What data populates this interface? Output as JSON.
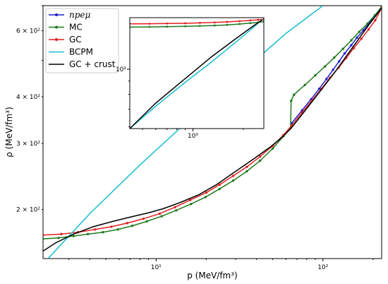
{
  "chart_data": [
    {
      "type": "line",
      "xlabel": "p (MeV/fm³)",
      "ylabel": "ρ (MeV/fm³)",
      "xscale": "log",
      "yscale": "log",
      "xlim": [
        2.1,
        225
      ],
      "ylim": [
        148,
        700
      ],
      "xticks": [
        {
          "value": 10,
          "label": "10¹"
        },
        {
          "value": 100,
          "label": "10²"
        }
      ],
      "yticks": [
        {
          "value": 200,
          "label": "2 × 10²"
        },
        {
          "value": 300,
          "label": "3 × 10²"
        },
        {
          "value": 400,
          "label": "4 × 10²"
        },
        {
          "value": 600,
          "label": "6 × 10²"
        }
      ],
      "legend_position": "upper-left",
      "series": [
        {
          "name": "npeμ",
          "color": "#1f1fcc",
          "marker": true,
          "points": [
            [
              65,
              340
            ],
            [
              75,
              368
            ],
            [
              85,
              394
            ],
            [
              95,
              420
            ],
            [
              105,
              446
            ],
            [
              115,
              472
            ],
            [
              125,
              497
            ],
            [
              135,
              522
            ],
            [
              148,
              549
            ],
            [
              160,
              575
            ],
            [
              175,
              602
            ],
            [
              190,
              630
            ],
            [
              205,
              658
            ],
            [
              225,
              694
            ]
          ]
        },
        {
          "name": "MC",
          "color": "#1f7a1f",
          "marker": true,
          "points": [
            [
              2.1,
              167
            ],
            [
              2.6,
              168
            ],
            [
              3.2,
              170
            ],
            [
              3.9,
              172
            ],
            [
              4.8,
              174
            ],
            [
              5.9,
              177
            ],
            [
              7.2,
              181
            ],
            [
              8.8,
              186
            ],
            [
              10.8,
              192
            ],
            [
              13.2,
              199
            ],
            [
              16.2,
              207
            ],
            [
              19.8,
              216
            ],
            [
              24,
              227
            ],
            [
              29,
              239
            ],
            [
              35,
              253
            ],
            [
              42,
              270
            ],
            [
              50,
              291
            ],
            [
              58,
              314
            ],
            [
              64,
              330
            ],
            [
              64.5,
              390
            ],
            [
              67,
              405
            ],
            [
              78,
              430
            ],
            [
              90,
              456
            ],
            [
              103,
              482
            ],
            [
              117,
              509
            ],
            [
              132,
              537
            ],
            [
              148,
              566
            ],
            [
              165,
              596
            ],
            [
              185,
              627
            ],
            [
              205,
              660
            ],
            [
              225,
              696
            ]
          ]
        },
        {
          "name": "GC",
          "color": "#e02020",
          "marker": true,
          "points": [
            [
              2.1,
              171
            ],
            [
              2.7,
              172
            ],
            [
              3.4,
              174
            ],
            [
              4.3,
              177
            ],
            [
              5.4,
              180
            ],
            [
              6.7,
              184
            ],
            [
              8.4,
              189
            ],
            [
              10.5,
              195
            ],
            [
              13,
              203
            ],
            [
              16,
              212
            ],
            [
              20,
              222
            ],
            [
              24,
              233
            ],
            [
              29,
              246
            ],
            [
              35,
              260
            ],
            [
              42,
              277
            ],
            [
              50,
              296
            ],
            [
              58,
              316
            ],
            [
              65,
              335
            ],
            [
              75,
              363
            ],
            [
              86,
              391
            ],
            [
              98,
              420
            ],
            [
              110,
              449
            ],
            [
              124,
              478
            ],
            [
              138,
              508
            ],
            [
              153,
              539
            ],
            [
              170,
              571
            ],
            [
              188,
              605
            ],
            [
              206,
              640
            ],
            [
              225,
              690
            ]
          ]
        },
        {
          "name": "BCPM",
          "color": "#17becf",
          "marker": false,
          "points": [
            [
              2.25,
              148
            ],
            [
              4,
              195
            ],
            [
              8,
              263
            ],
            [
              15,
              340
            ],
            [
              30,
              450
            ],
            [
              60,
              590
            ],
            [
              100,
              700
            ]
          ]
        },
        {
          "name": "GC + crust",
          "color": "#000000",
          "marker": false,
          "points": [
            [
              2.1,
              155
            ],
            [
              2.5,
              163
            ],
            [
              3.2,
              172
            ],
            [
              4.2,
              180
            ],
            [
              5.5,
              186
            ],
            [
              7,
              191
            ],
            [
              9,
              196
            ],
            [
              11,
              201
            ],
            [
              14,
              209
            ],
            [
              18,
              219
            ],
            [
              23,
              233
            ],
            [
              30,
              253
            ],
            [
              38,
              272
            ],
            [
              48,
              293
            ],
            [
              58,
              314
            ],
            [
              65,
              331
            ],
            [
              80,
              372
            ],
            [
              100,
              423
            ],
            [
              120,
              470
            ],
            [
              150,
              540
            ],
            [
              190,
              625
            ],
            [
              225,
              690
            ]
          ]
        }
      ]
    },
    {
      "type": "line",
      "inset": true,
      "xscale": "log",
      "yscale": "log",
      "xlim": [
        0.42,
        2.65
      ],
      "ylim": [
        59,
        158
      ],
      "xticks": [
        {
          "value": 1,
          "label": "10⁰"
        }
      ],
      "yticks": [
        {
          "value": 100,
          "label": "10²"
        }
      ],
      "series": [
        {
          "name": "GC",
          "color": "#e02020",
          "marker": true,
          "points": [
            [
              0.42,
              149.5
            ],
            [
              0.55,
              149.7
            ],
            [
              0.7,
              150
            ],
            [
              0.9,
              150.3
            ],
            [
              1.1,
              150.8
            ],
            [
              1.35,
              151.4
            ],
            [
              1.6,
              152.2
            ],
            [
              1.9,
              153.2
            ],
            [
              2.2,
              154.2
            ],
            [
              2.45,
              155
            ],
            [
              2.65,
              155.7
            ]
          ]
        },
        {
          "name": "MC",
          "color": "#1f7a1f",
          "marker": true,
          "points": [
            [
              0.42,
              145.3
            ],
            [
              0.55,
              145.5
            ],
            [
              0.7,
              145.9
            ],
            [
              0.9,
              146.3
            ],
            [
              1.1,
              146.8
            ],
            [
              1.35,
              147.4
            ],
            [
              1.6,
              148.2
            ],
            [
              1.9,
              149.3
            ],
            [
              2.2,
              150.5
            ],
            [
              2.45,
              151.5
            ],
            [
              2.65,
              152.5
            ]
          ]
        },
        {
          "name": "BCPM",
          "color": "#17becf",
          "marker": false,
          "points": [
            [
              0.42,
              59
            ],
            [
              0.6,
              72
            ],
            [
              0.9,
              89
            ],
            [
              1.3,
              107
            ],
            [
              1.8,
              127
            ],
            [
              2.3,
              145
            ],
            [
              2.6,
              156
            ]
          ]
        },
        {
          "name": "GC + crust",
          "color": "#000000",
          "marker": false,
          "points": [
            [
              0.42,
              59
            ],
            [
              0.6,
              74
            ],
            [
              0.9,
              92
            ],
            [
              1.3,
              112
            ],
            [
              1.8,
              131
            ],
            [
              2.3,
              147
            ],
            [
              2.6,
              155
            ]
          ]
        }
      ]
    }
  ]
}
